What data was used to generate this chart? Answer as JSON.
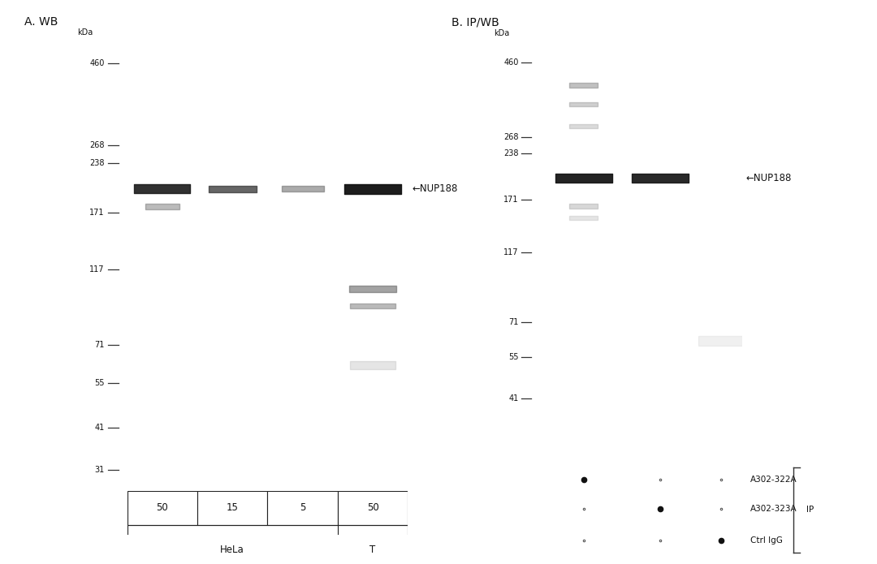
{
  "bg_color": "#dcdad6",
  "white_bg": "#ffffff",
  "panel_A_title": "A. WB",
  "panel_B_title": "B. IP/WB",
  "mw_markers_A": [
    460,
    268,
    238,
    171,
    117,
    71,
    55,
    41,
    31
  ],
  "mw_markers_B": [
    460,
    268,
    238,
    171,
    117,
    71,
    55,
    41
  ],
  "nup188_label": "←NUP188",
  "panel_A_sample_labels": [
    "50",
    "15",
    "5",
    "50"
  ],
  "panel_B_dot_rows": [
    [
      "+",
      "-",
      "-"
    ],
    [
      "-",
      "+",
      "-"
    ],
    [
      "-",
      "-",
      "+"
    ]
  ],
  "panel_B_antibody_labels": [
    "A302-322A",
    "A302-323A",
    "Ctrl IgG"
  ],
  "panel_B_IP_label": "IP",
  "kDa_label": "kDa"
}
